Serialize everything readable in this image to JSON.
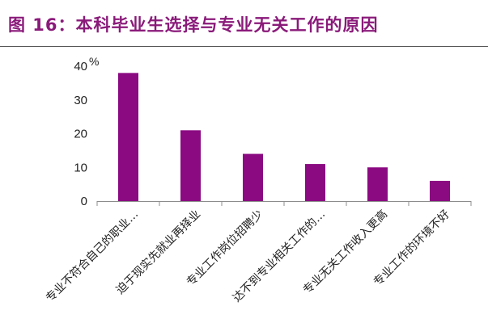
{
  "figure": {
    "title": "图 16：本科毕业生选择与专业无关工作的原因"
  },
  "chart_data": {
    "type": "bar",
    "title": "",
    "xlabel": "",
    "ylabel": "",
    "unit": "%",
    "categories": [
      "专业不符合自己的职业…",
      "迫于现实先就业再择业",
      "专业工作岗位招聘少",
      "达不到专业相关工作的…",
      "专业无关工作收入更高",
      "专业工作的环境不好"
    ],
    "values": [
      38,
      21,
      14,
      11,
      10,
      6
    ],
    "ylim": [
      0,
      40
    ],
    "yticks": [
      0,
      10,
      20,
      30,
      40
    ],
    "grid": false,
    "legend": "none",
    "bar_color": "#8b0a82",
    "axis_color": "#8c8c8c"
  }
}
